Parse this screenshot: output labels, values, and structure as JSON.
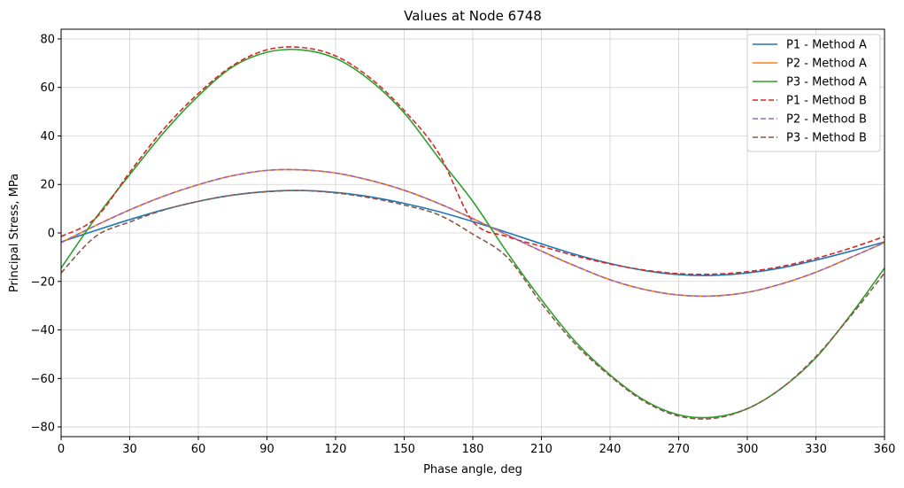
{
  "chart_data": {
    "type": "line",
    "title": "Values at Node 6748",
    "xlabel": "Phase angle, deg",
    "ylabel": "Principal Stress, MPa",
    "xlim": [
      0,
      360
    ],
    "ylim": [
      -84,
      84
    ],
    "xticks": [
      0,
      30,
      60,
      90,
      120,
      150,
      180,
      210,
      240,
      270,
      300,
      330,
      360
    ],
    "yticks": [
      -80,
      -60,
      -40,
      -20,
      0,
      20,
      40,
      60,
      80
    ],
    "grid": true,
    "legend_position": "top-right",
    "x": [
      0,
      15,
      30,
      45,
      60,
      75,
      90,
      105,
      120,
      135,
      150,
      165,
      180,
      195,
      210,
      225,
      240,
      255,
      270,
      285,
      300,
      315,
      330,
      345,
      360
    ],
    "series": [
      {
        "name": "P1 - Method A",
        "color": "#1f77b4",
        "style": "solid",
        "values": [
          -3.7,
          1.0,
          5.5,
          9.6,
          13.0,
          15.6,
          17.1,
          17.5,
          16.7,
          14.9,
          12.2,
          8.8,
          4.7,
          0.2,
          -4.5,
          -8.9,
          -12.6,
          -15.5,
          -17.2,
          -17.5,
          -16.5,
          -14.4,
          -11.2,
          -7.6,
          -3.7
        ]
      },
      {
        "name": "P2 - Method A",
        "color": "#ff7f0e",
        "style": "solid",
        "values": [
          -4.0,
          3.0,
          9.5,
          15.2,
          19.9,
          23.6,
          25.8,
          26.0,
          24.7,
          21.7,
          17.6,
          12.2,
          5.9,
          -0.8,
          -7.5,
          -13.7,
          -19.3,
          -23.3,
          -25.6,
          -26.0,
          -24.5,
          -21.0,
          -16.2,
          -10.2,
          -4.0
        ]
      },
      {
        "name": "P3 - Method A",
        "color": "#2ca02c",
        "style": "solid",
        "values": [
          -14.5,
          6.0,
          24.0,
          41.5,
          56.5,
          68.5,
          74.5,
          75.5,
          72.0,
          63.0,
          49.5,
          31.0,
          13.0,
          -8.0,
          -27.5,
          -45.0,
          -58.5,
          -69.0,
          -75.0,
          -76.0,
          -72.5,
          -64.0,
          -51.5,
          -34.0,
          -14.5
        ]
      },
      {
        "name": "P1 - Method B",
        "color": "#d62728",
        "style": "dashed",
        "values": [
          -1.5,
          6.0,
          25.0,
          43.0,
          57.5,
          69.0,
          75.5,
          76.5,
          73.0,
          64.0,
          50.5,
          33.0,
          4.8,
          -1.5,
          -5.5,
          -9.5,
          -12.8,
          -15.3,
          -16.8,
          -17.0,
          -16.0,
          -13.8,
          -10.5,
          -6.3,
          -1.5
        ]
      },
      {
        "name": "P2 - Method B",
        "color": "#9467bd",
        "style": "dashed",
        "values": [
          -4.0,
          3.0,
          9.5,
          15.2,
          19.9,
          23.6,
          25.8,
          26.0,
          24.7,
          21.7,
          17.6,
          12.2,
          5.9,
          -0.8,
          -7.5,
          -13.7,
          -19.3,
          -23.3,
          -25.6,
          -26.0,
          -24.5,
          -21.0,
          -16.2,
          -10.2,
          -4.0
        ]
      },
      {
        "name": "P3 - Method B",
        "color": "#8c564b",
        "style": "dashed",
        "values": [
          -16.5,
          -1.5,
          4.5,
          9.5,
          13.0,
          15.6,
          17.0,
          17.5,
          16.5,
          14.5,
          11.5,
          7.5,
          -0.5,
          -10.0,
          -29.0,
          -46.0,
          -59.0,
          -69.5,
          -75.5,
          -76.5,
          -72.5,
          -64.0,
          -51.0,
          -34.5,
          -16.5
        ]
      }
    ]
  }
}
